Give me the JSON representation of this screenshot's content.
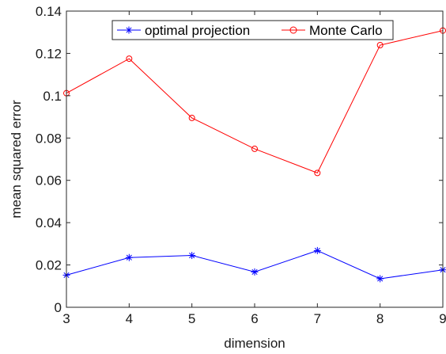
{
  "chart_data": {
    "type": "line",
    "xlabel": "dimension",
    "ylabel": "mean squared error",
    "x": [
      3,
      4,
      5,
      6,
      7,
      8,
      9
    ],
    "xticks": [
      "3",
      "4",
      "5",
      "6",
      "7",
      "8",
      "9"
    ],
    "xlim": [
      3,
      9
    ],
    "ylim": [
      0,
      0.14
    ],
    "yticks": [
      "0",
      "0.02",
      "0.04",
      "0.06",
      "0.08",
      "0.1",
      "0.12",
      "0.14"
    ],
    "yticks_values": [
      0,
      0.02,
      0.04,
      0.06,
      0.08,
      0.1,
      0.12,
      0.14
    ],
    "grid": false,
    "legend_position": "top-center",
    "series": [
      {
        "name": "optimal projection",
        "color": "#0000ff",
        "marker": "asterisk",
        "values": [
          0.0152,
          0.0235,
          0.0245,
          0.0167,
          0.0268,
          0.0135,
          0.0177
        ]
      },
      {
        "name": "Monte Carlo",
        "color": "#ff0000",
        "marker": "circle",
        "values": [
          0.1012,
          0.1175,
          0.0895,
          0.0749,
          0.0635,
          0.1239,
          0.1308
        ]
      }
    ]
  }
}
